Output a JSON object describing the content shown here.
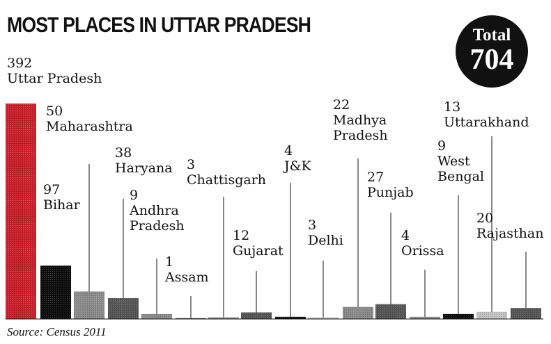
{
  "title": "MOST PLACES IN UTTAR PRADESH",
  "total": {
    "label": "Total",
    "value": "704"
  },
  "source": "Source: Census 2011",
  "colors": {
    "uttar_pradesh": "#c8202b",
    "black": "#0d0d0d",
    "dark_gray": "#555555",
    "mid_gray": "#8a8a8a",
    "light_gray": "#c2c2c2"
  },
  "chart_data": {
    "type": "bar",
    "title": "MOST PLACES IN UTTAR PRADESH",
    "xlabel": "",
    "ylabel": "",
    "ylim": [
      0,
      392
    ],
    "grid": false,
    "legend": "none",
    "categories": [
      "Uttar Pradesh",
      "Bihar",
      "Maharashtra",
      "Haryana",
      "Andhra Pradesh",
      "Assam",
      "Chattisgarh",
      "Gujarat",
      "J&K",
      "Delhi",
      "Madhya Pradesh",
      "Punjab",
      "Orissa",
      "West Bengal",
      "Uttarakhand",
      "Rajasthan"
    ],
    "values": [
      392,
      97,
      50,
      38,
      9,
      1,
      3,
      12,
      4,
      3,
      22,
      27,
      4,
      9,
      13,
      20
    ],
    "bar_colors": [
      "#c8202b",
      "#0d0d0d",
      "#8a8a8a",
      "#555555",
      "#8a8a8a",
      "#555555",
      "#8a8a8a",
      "#555555",
      "#0d0d0d",
      "#c2c2c2",
      "#8a8a8a",
      "#555555",
      "#8a8a8a",
      "#0d0d0d",
      "#c2c2c2",
      "#555555"
    ],
    "label_lines": [
      [
        "392",
        "Uttar Pradesh"
      ],
      [
        "97",
        "Bihar"
      ],
      [
        "50",
        "Maharashtra"
      ],
      [
        "38",
        "Haryana"
      ],
      [
        "9",
        "Andhra",
        "Pradesh"
      ],
      [
        "1",
        "Assam"
      ],
      [
        "3",
        "Chattisgarh"
      ],
      [
        "12",
        "Gujarat"
      ],
      [
        "4",
        "J&K"
      ],
      [
        "3",
        "Delhi"
      ],
      [
        "22",
        "Madhya",
        "Pradesh"
      ],
      [
        "27",
        "Punjab"
      ],
      [
        "4",
        "Orissa"
      ],
      [
        "9",
        "West",
        "Bengal"
      ],
      [
        "13",
        "Uttarakhand"
      ],
      [
        "20",
        "Rajasthan"
      ]
    ]
  }
}
